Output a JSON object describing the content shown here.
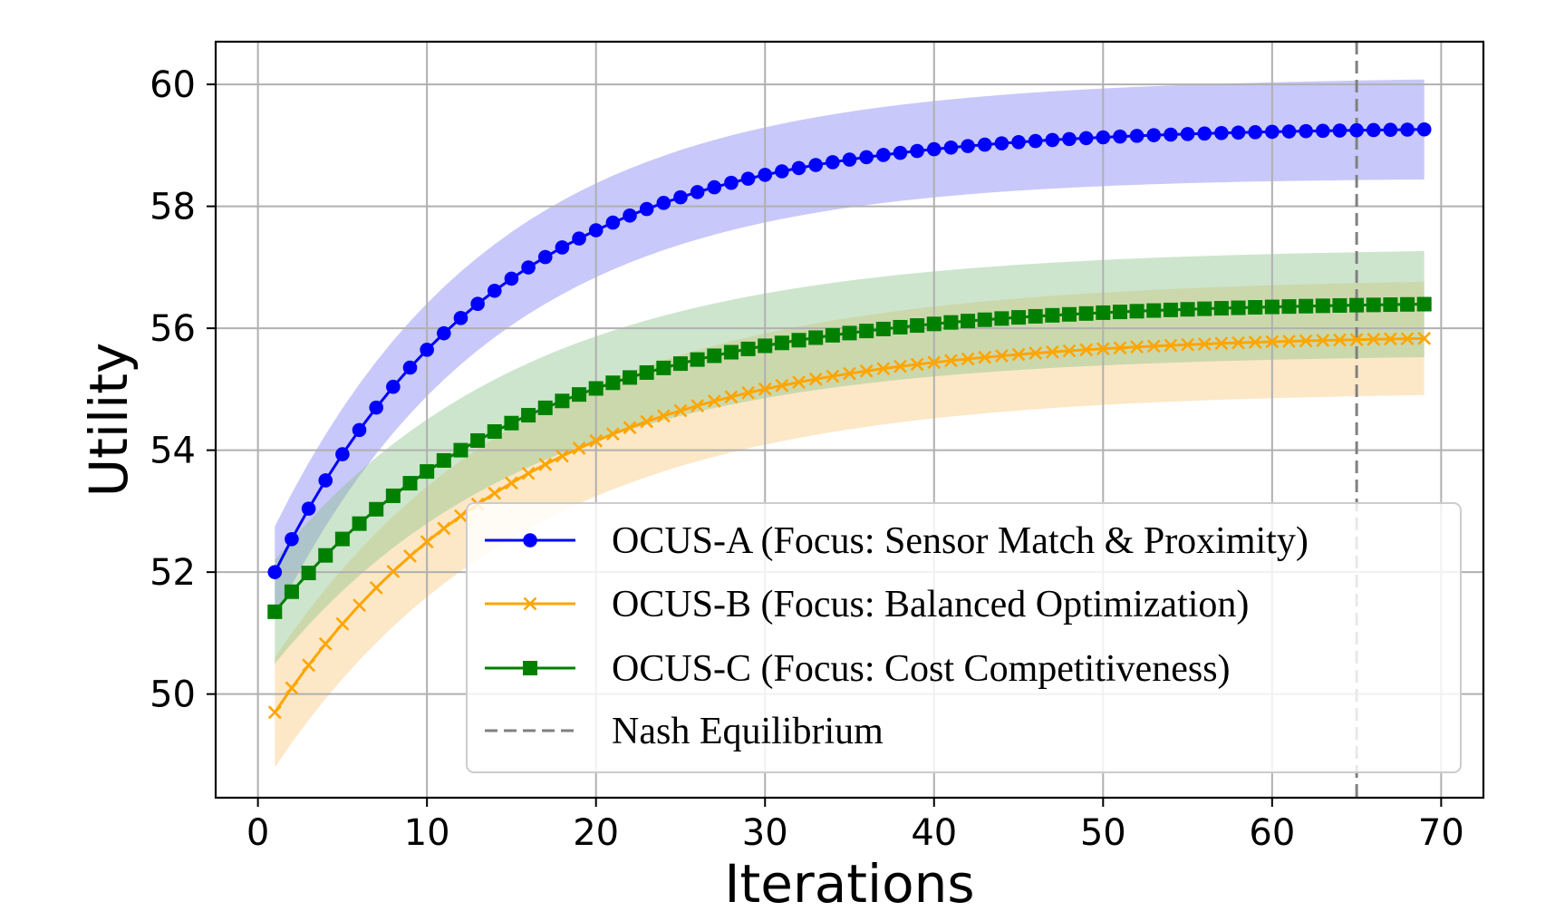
{
  "chart_data": {
    "type": "line",
    "title": "",
    "xlabel": "Iterations",
    "ylabel": "Utility",
    "xlim": [
      -2.5,
      72.5
    ],
    "ylim": [
      48.3,
      60.7
    ],
    "xticks": [
      0,
      10,
      20,
      30,
      40,
      50,
      60,
      70
    ],
    "yticks": [
      50,
      52,
      54,
      56,
      58,
      60
    ],
    "grid": true,
    "legend_position": "lower-right",
    "x_range": [
      1,
      69
    ],
    "series": [
      {
        "name": "OCUS-A (Focus: Sensor Match & Proximity)",
        "color": "#0000ff",
        "band_color": "#7b7bf2",
        "marker": "circle",
        "start": 52.0,
        "plateau": 59.3,
        "tau": 13.0,
        "band_half_width_start": 0.75,
        "band_half_width_end": 0.82
      },
      {
        "name": "OCUS-B (Focus: Balanced Optimization)",
        "color": "#ffa500",
        "band_color": "#f8c87a",
        "marker": "x",
        "start": 49.7,
        "plateau": 55.9,
        "tau": 15.0,
        "band_half_width_start": 0.9,
        "band_half_width_end": 0.93
      },
      {
        "name": "OCUS-C (Focus: Cost Competitiveness)",
        "color": "#008000",
        "band_color": "#88c088",
        "marker": "square",
        "start": 51.35,
        "plateau": 56.45,
        "tau": 15.0,
        "band_half_width_start": 0.85,
        "band_half_width_end": 0.87
      }
    ],
    "reference_lines": [
      {
        "name": "Nash Equilibrium",
        "orientation": "vertical",
        "x": 65,
        "style": "dashed",
        "color": "#808080"
      }
    ]
  }
}
